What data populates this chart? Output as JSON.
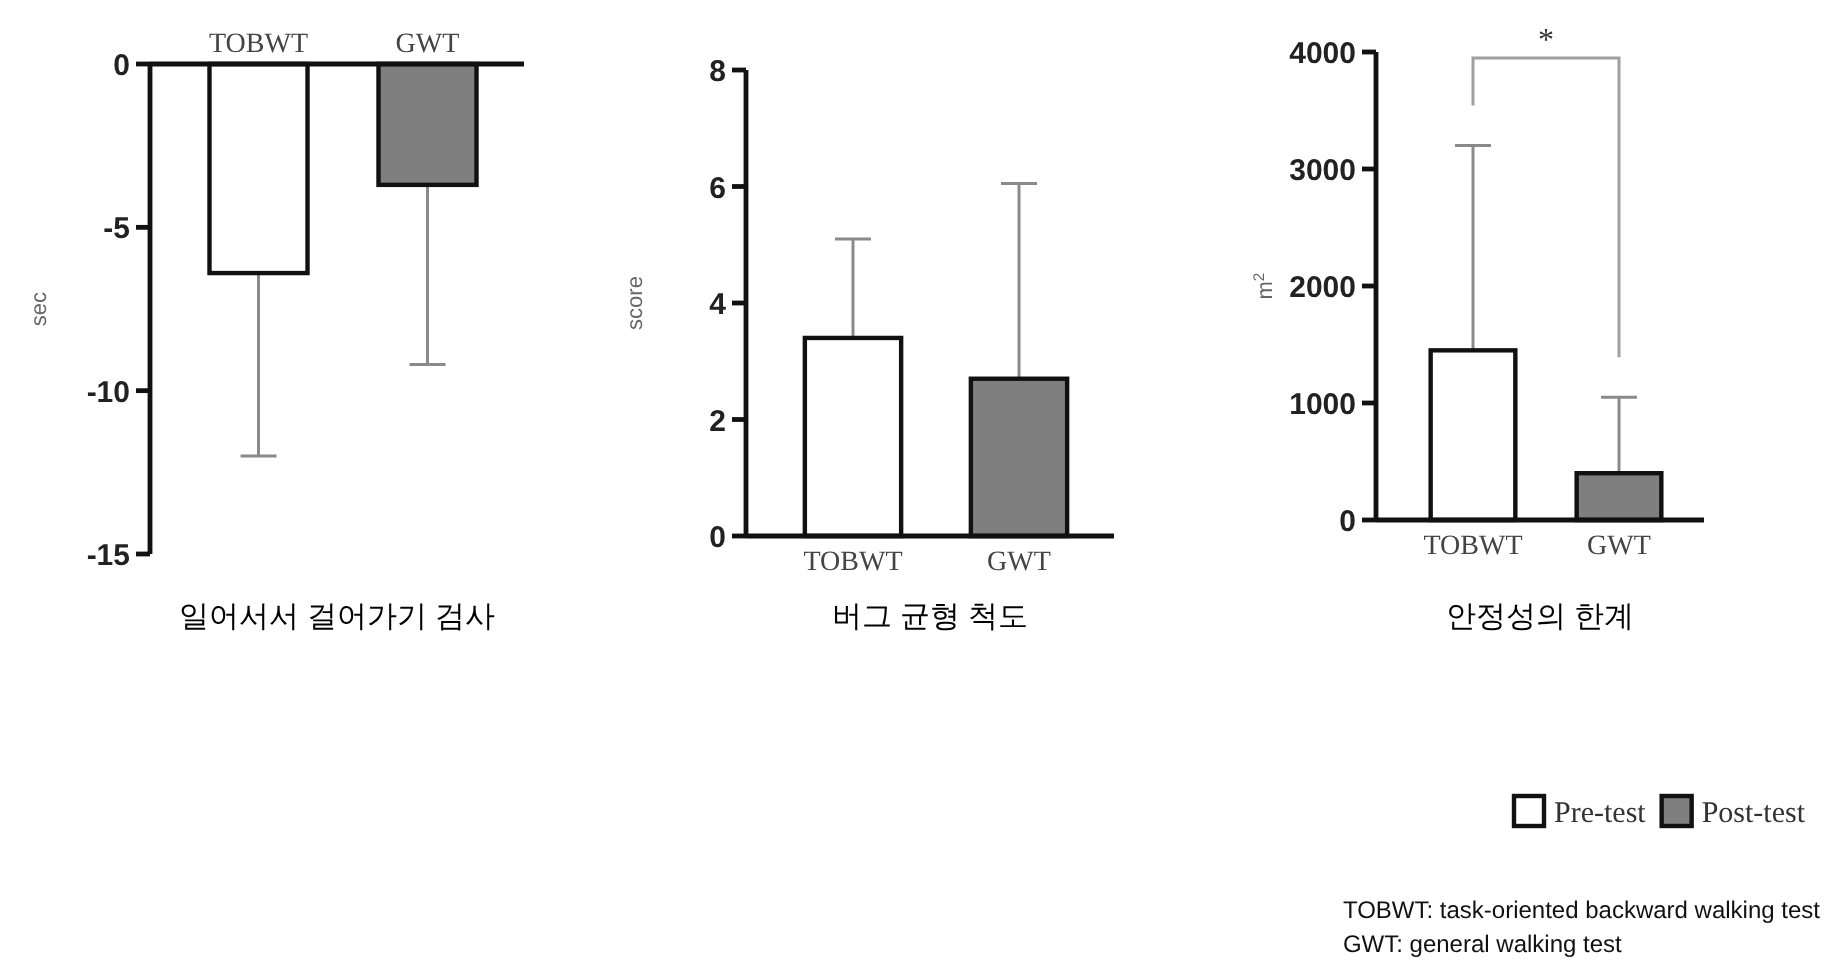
{
  "chart_data": [
    {
      "type": "bar",
      "categories": [
        "TOBWT",
        "GWT"
      ],
      "xlabel": "일어서서 걸어가기 검사",
      "ylabel": "sec",
      "ylim": [
        -15,
        0
      ],
      "yticks": [
        -15,
        -10,
        -5,
        0
      ],
      "series": [
        {
          "color": "#ffffff",
          "values": [
            -6.4,
            null
          ],
          "errors": [
            [
              -12,
              -6.4
            ],
            null
          ]
        },
        {
          "color": "#7f7f7f",
          "values": [
            null,
            -3.7
          ],
          "errors": [
            null,
            [
              -9.2,
              -3.7
            ]
          ]
        }
      ]
    },
    {
      "type": "bar",
      "categories": [
        "TOBWT",
        "GWT"
      ],
      "xlabel": "버그 균형 척도",
      "ylabel": "score",
      "ylim": [
        0,
        8
      ],
      "yticks": [
        0,
        2,
        4,
        6,
        8
      ],
      "series": [
        {
          "color": "#ffffff",
          "values": [
            3.4,
            null
          ],
          "errors": [
            [
              3.4,
              5.1
            ],
            null
          ]
        },
        {
          "color": "#7f7f7f",
          "values": [
            null,
            2.7
          ],
          "errors": [
            null,
            [
              2.7,
              6.05
            ]
          ]
        }
      ]
    },
    {
      "type": "bar",
      "categories": [
        "TOBWT",
        "GWT"
      ],
      "xlabel": "안정성의 한계",
      "ylabel": "m$^{2}$",
      "ylim": [
        0,
        4000
      ],
      "yticks": [
        0,
        1000,
        2000,
        3000,
        4000
      ],
      "legend": "bottom right",
      "annotations": [
        "*",
        "TOBWT: task-oriented backward walking test",
        "GWT: general walking test"
      ],
      "series": [
        {
          "name": "Pre-test",
          "color": "#ffffff",
          "values": [
            1450,
            null
          ],
          "errors": [
            [
              1450,
              3200
            ],
            null
          ]
        },
        {
          "name": "Post-test",
          "color": "#7f7f7f",
          "values": [
            null,
            400
          ],
          "errors": [
            null,
            [
              400,
              1050
            ]
          ]
        }
      ]
    }
  ]
}
